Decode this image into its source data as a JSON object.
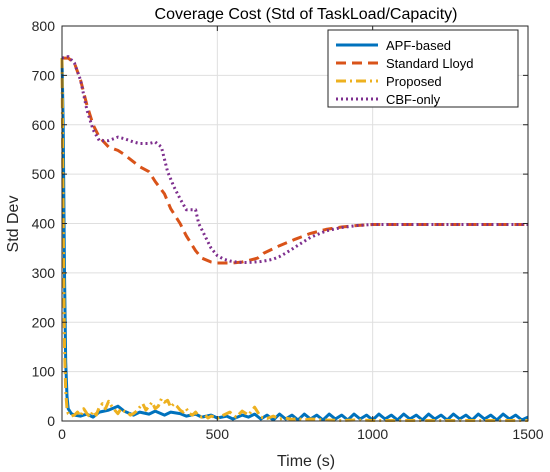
{
  "chart_data": {
    "type": "line",
    "title": "Coverage Cost (Std of TaskLoad/Capacity)",
    "xlabel": "Time (s)",
    "ylabel": "Std Dev",
    "xlim": [
      0,
      1500
    ],
    "ylim": [
      0,
      800
    ],
    "xticks": [
      0,
      500,
      1000,
      1500
    ],
    "yticks": [
      0,
      100,
      200,
      300,
      400,
      500,
      600,
      700,
      800
    ],
    "grid": true,
    "legend_position": "top-right",
    "series": [
      {
        "name": "APF-based",
        "color": "#0072BD",
        "style": "solid",
        "x": [
          0,
          4,
          8,
          12,
          16,
          20,
          30,
          40,
          60,
          80,
          100,
          120,
          150,
          180,
          200,
          230,
          250,
          280,
          300,
          330,
          350,
          380,
          400,
          430,
          450,
          480,
          500,
          530,
          550,
          580,
          600,
          620,
          640,
          660,
          680,
          700,
          720,
          740,
          760,
          780,
          800,
          820,
          840,
          860,
          880,
          900,
          920,
          940,
          960,
          980,
          1000,
          1020,
          1040,
          1060,
          1080,
          1100,
          1120,
          1140,
          1160,
          1180,
          1200,
          1220,
          1240,
          1260,
          1280,
          1300,
          1320,
          1340,
          1360,
          1380,
          1400,
          1420,
          1440,
          1460,
          1480,
          1500
        ],
        "y": [
          735,
          600,
          300,
          120,
          50,
          25,
          15,
          12,
          10,
          14,
          8,
          18,
          22,
          30,
          20,
          12,
          18,
          14,
          20,
          12,
          18,
          15,
          10,
          14,
          8,
          12,
          6,
          10,
          4,
          12,
          8,
          14,
          4,
          12,
          2,
          14,
          4,
          12,
          2,
          14,
          4,
          12,
          2,
          14,
          4,
          12,
          2,
          14,
          4,
          12,
          2,
          14,
          4,
          12,
          2,
          14,
          4,
          12,
          2,
          14,
          4,
          12,
          2,
          14,
          4,
          12,
          2,
          14,
          4,
          12,
          2,
          14,
          4,
          12,
          2,
          8
        ]
      },
      {
        "name": "Standard Lloyd",
        "color": "#D95319",
        "style": "dashed",
        "x": [
          0,
          20,
          40,
          60,
          80,
          100,
          120,
          150,
          180,
          200,
          230,
          250,
          280,
          300,
          330,
          350,
          380,
          400,
          430,
          450,
          480,
          500,
          530,
          550,
          580,
          600,
          630,
          650,
          700,
          750,
          800,
          850,
          900,
          950,
          1000,
          1050,
          1100,
          1200,
          1300,
          1400,
          1500
        ],
        "y": [
          735,
          735,
          725,
          690,
          640,
          600,
          575,
          555,
          548,
          540,
          525,
          515,
          505,
          485,
          460,
          430,
          400,
          375,
          345,
          330,
          322,
          320,
          320,
          320,
          322,
          325,
          330,
          340,
          355,
          368,
          380,
          388,
          393,
          396,
          398,
          398,
          398,
          398,
          398,
          398,
          398
        ]
      },
      {
        "name": "Proposed",
        "color": "#EDB120",
        "style": "dashdot",
        "x": [
          0,
          4,
          8,
          12,
          16,
          20,
          30,
          40,
          50,
          60,
          70,
          80,
          90,
          100,
          110,
          120,
          130,
          140,
          150,
          160,
          170,
          180,
          190,
          200,
          210,
          220,
          230,
          240,
          250,
          260,
          270,
          280,
          290,
          300,
          310,
          320,
          330,
          340,
          350,
          360,
          370,
          380,
          390,
          400,
          410,
          420,
          430,
          440,
          450,
          460,
          470,
          480,
          490,
          500,
          520,
          540,
          560,
          580,
          600,
          620,
          640,
          660,
          680,
          700,
          720,
          740,
          760,
          780,
          800,
          850,
          900,
          950,
          1000,
          1100,
          1200,
          1300,
          1400,
          1500
        ],
        "y": [
          735,
          400,
          150,
          60,
          25,
          15,
          10,
          12,
          18,
          10,
          25,
          15,
          8,
          20,
          12,
          28,
          35,
          25,
          40,
          30,
          22,
          15,
          25,
          20,
          18,
          12,
          15,
          20,
          28,
          35,
          22,
          30,
          38,
          25,
          30,
          45,
          38,
          42,
          28,
          35,
          30,
          22,
          18,
          25,
          15,
          12,
          18,
          10,
          8,
          12,
          6,
          10,
          8,
          5,
          12,
          18,
          8,
          20,
          12,
          28,
          8,
          5,
          10,
          4,
          6,
          3,
          5,
          2,
          4,
          2,
          1,
          2,
          1,
          1,
          1,
          1,
          1,
          1
        ]
      },
      {
        "name": "CBF-only",
        "color": "#7E2F8E",
        "style": "dotted",
        "x": [
          0,
          20,
          40,
          60,
          80,
          100,
          120,
          150,
          180,
          200,
          230,
          250,
          280,
          300,
          320,
          330,
          340,
          360,
          380,
          400,
          420,
          430,
          440,
          460,
          480,
          500,
          520,
          540,
          560,
          580,
          600,
          620,
          640,
          660,
          680,
          700,
          720,
          740,
          760,
          780,
          800,
          850,
          900,
          950,
          1000,
          1050,
          1100,
          1200,
          1300,
          1400,
          1500
        ],
        "y": [
          735,
          738,
          725,
          690,
          630,
          590,
          568,
          568,
          575,
          572,
          565,
          562,
          562,
          565,
          555,
          530,
          505,
          475,
          450,
          428,
          428,
          428,
          400,
          375,
          350,
          335,
          328,
          324,
          322,
          321,
          321,
          322,
          323,
          325,
          328,
          333,
          340,
          348,
          356,
          364,
          372,
          385,
          392,
          396,
          398,
          398,
          398,
          398,
          398,
          398,
          398
        ]
      }
    ]
  }
}
